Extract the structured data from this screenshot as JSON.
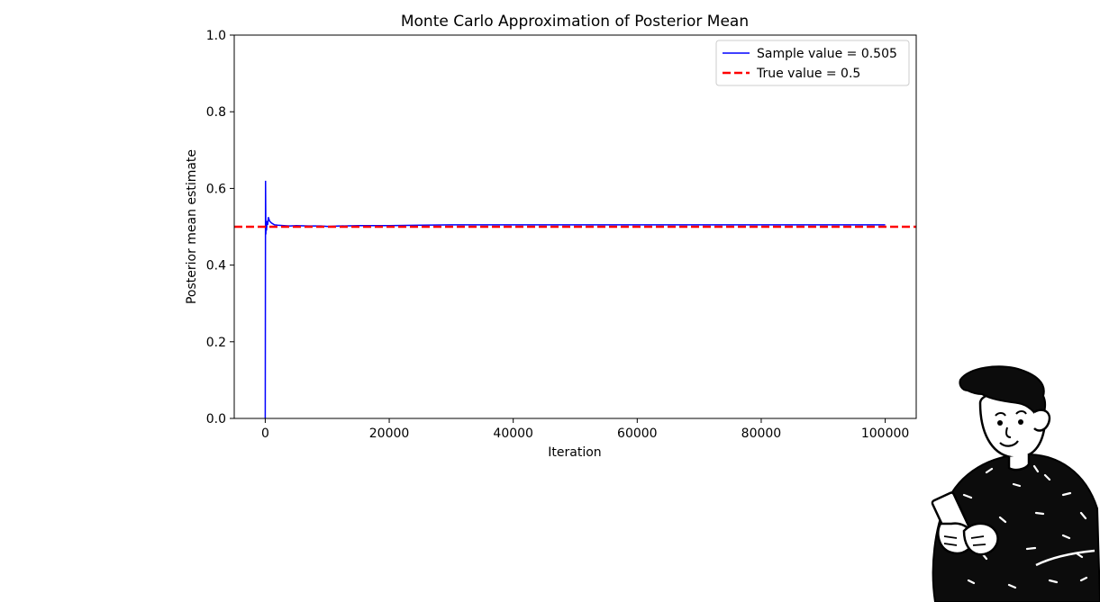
{
  "chart_data": {
    "type": "line",
    "title": "Monte Carlo Approximation of Posterior Mean",
    "xlabel": "Iteration",
    "ylabel": "Posterior mean estimate",
    "xlim": [
      -5000,
      105000
    ],
    "ylim": [
      0.0,
      1.0
    ],
    "x_ticks": [
      0,
      20000,
      40000,
      60000,
      80000,
      100000
    ],
    "x_tick_labels": [
      "0",
      "20000",
      "40000",
      "60000",
      "80000",
      "100000"
    ],
    "y_ticks": [
      0.0,
      0.2,
      0.4,
      0.6,
      0.8,
      1.0
    ],
    "y_tick_labels": [
      "0.0",
      "0.2",
      "0.4",
      "0.6",
      "0.8",
      "1.0"
    ],
    "grid": false,
    "legend_position": "top-right",
    "series": [
      {
        "name": "Sample value = 0.505",
        "style": "solid",
        "color": "#0000ff",
        "x": [
          0,
          50,
          100,
          150,
          200,
          300,
          400,
          500,
          700,
          1000,
          1500,
          2000,
          3000,
          4000,
          5000,
          7000,
          9000,
          10000,
          12000,
          15000,
          20000,
          25000,
          30000,
          40000,
          50000,
          60000,
          70000,
          80000,
          90000,
          100000
        ],
        "y": [
          0.0,
          0.62,
          0.48,
          0.51,
          0.49,
          0.515,
          0.505,
          0.525,
          0.515,
          0.51,
          0.505,
          0.504,
          0.503,
          0.502,
          0.503,
          0.502,
          0.502,
          0.501,
          0.502,
          0.503,
          0.503,
          0.504,
          0.505,
          0.505,
          0.505,
          0.505,
          0.505,
          0.505,
          0.505,
          0.505
        ]
      },
      {
        "name": "True value = 0.5",
        "style": "dashed",
        "color": "#ff0000",
        "constant_y": 0.5
      }
    ]
  },
  "illustration": {
    "icon": "person-holding-phone-icon"
  }
}
